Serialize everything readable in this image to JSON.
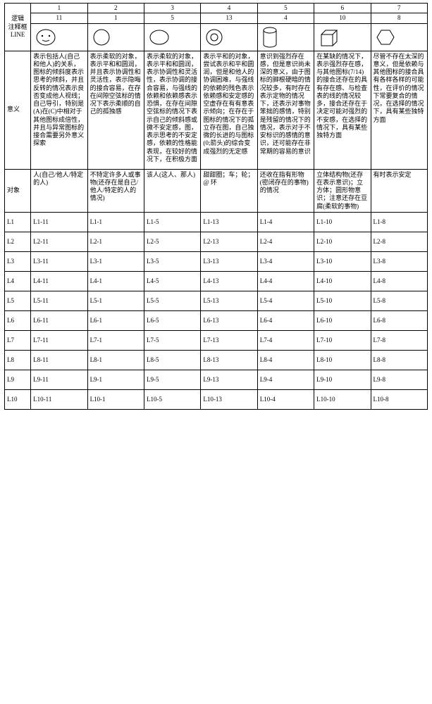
{
  "table": {
    "corner": "逻辑\n注释框\nLINE",
    "header1": [
      "1",
      "2",
      "3",
      "4",
      "5",
      "6",
      "7"
    ],
    "header2": [
      "11",
      "1",
      "5",
      "13",
      "4",
      "10",
      "8"
    ],
    "row_labels": {
      "meaning": "意义",
      "target": "对象",
      "lines": [
        "L1",
        "L2",
        "L3",
        "L4",
        "L5",
        "L6",
        "L7",
        "L8",
        "L9",
        "L10"
      ]
    },
    "meanings": [
      "表示包括人(自己和他人)的关系，图标的倾斜度表示思考的倾斜，并且反转的情况表示良否变成他人视线；自己导引，特别是(A)在(C)中相对于其他图标成倍性，并且与异常图标的接合需要另外意义探索",
      "表示柔软的对象，表示平和和圆润，并且表示协调性和灵活性，表示隐晦的接合容易，在存在间隙空弦标的情况下表示柔顺的自己的孤独感",
      "表示柔软的对象，表示平和和圆润，表示协调性和灵活性，表示协调的接合容易，与强线的依赖和依赖感表示恐惧，在存在间隙空弦标的情况下表示自己的倾斜感或微不安定感，图，表示思考的不安定感，依赖的性格能表现，在较好的情况下，在积极方面",
      "表示平和的对象，尝试表示和平和圆润，但是和他人的协调困难，与强线的依赖的残色表示依赖感和安定感的空虚存在有有意表示倾向；在存在于图标的情况下的孤立存在图，自己独微的长进的与图标(0;箭头)的综合变成强烈的无定感",
      "意识到强烈存在感，但是意识尚未深的意义，由于图标的脚根硬暗的情况较多，有时存在表示定物的情况下，还表示对事物笨拙的感情，特别是残留的情况下的情况，表示对于不安标识的感情的意识，还可能存在非常期的容易的意识",
      "在某缺的情况下，表示强烈存在感，与其他图标(7/14)的接合还存在的具有存在感、与检查表的线的情况较多，接合还存在于决定可能对强烈的不安感，在选择的情况下，具有某些独特方面",
      "尽管不存在太深的意义，但是依赖与其他图标的接合具有各样各样的可能性，在评价的情况下常要复合的情况，在选择的情况下，具有某些独特方面"
    ],
    "targets": [
      "人(自己/他人/特定的人)",
      "不特定许多人或事物(还存在是自己/他人/特定的人的情况)",
      "该人(这人、那人)",
      "甜甜圈；车；轮；@ 环",
      "还收在指有形物(密闭存在的事物)的情况",
      "立体结构物(还存在表示意识)；立方体；圆形物意识；注意还存在豆腐(柔软的事物)",
      "有时表示安定"
    ],
    "matrix": [
      [
        "L1-11",
        "L1-1",
        "L1-5",
        "L1-13",
        "L1-4",
        "L1-10",
        "L1-8"
      ],
      [
        "L2-11",
        "L2-1",
        "L2-5",
        "L2-13",
        "L2-4",
        "L2-10",
        "L2-8"
      ],
      [
        "L3-11",
        "L3-1",
        "L3-5",
        "L3-13",
        "L3-4",
        "L3-10",
        "L3-8"
      ],
      [
        "L4-11",
        "L4-1",
        "L4-5",
        "L4-13",
        "L4-4",
        "L4-10",
        "L4-8"
      ],
      [
        "L5-11",
        "L5-1",
        "L5-5",
        "L5-13",
        "L5-4",
        "L5-10",
        "L5-8"
      ],
      [
        "L6-11",
        "L6-1",
        "L6-5",
        "L6-13",
        "L6-4",
        "L6-10",
        "L6-8"
      ],
      [
        "L7-11",
        "L7-1",
        "L7-5",
        "L7-13",
        "L7-4",
        "L7-10",
        "L7-8"
      ],
      [
        "L8-11",
        "L8-1",
        "L8-5",
        "L8-13",
        "L8-4",
        "L8-10",
        "L8-8"
      ],
      [
        "L9-11",
        "L9-1",
        "L9-5",
        "L9-13",
        "L9-4",
        "L9-10",
        "L9-8"
      ],
      [
        "L10-11",
        "L10-1",
        "L10-5",
        "L10-13",
        "L10-4",
        "L10-10",
        "L10-8"
      ]
    ],
    "colors": {
      "border": "#000000",
      "background": "#ffffff",
      "text": "#000000"
    },
    "fonts": {
      "body_pt": 9,
      "line_height": 1.25
    },
    "icons": [
      "face",
      "circle",
      "ellipse",
      "donut",
      "cylinder",
      "cube",
      "hexagon"
    ]
  }
}
